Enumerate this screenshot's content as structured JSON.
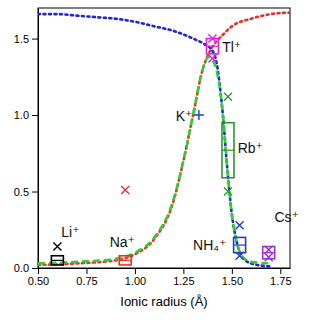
{
  "chart_data": {
    "type": "line",
    "x_label": "Ionic radius (Å)",
    "xlim": [
      0.5,
      1.8
    ],
    "xticks": [
      {
        "value": 0.5,
        "label": "0.50"
      },
      {
        "value": 0.75,
        "label": "0.75"
      },
      {
        "value": 1.0,
        "label": "1.00"
      },
      {
        "value": 1.25,
        "label": "1.25"
      },
      {
        "value": 1.5,
        "label": "1.50"
      },
      {
        "value": 1.75,
        "label": "1.75"
      }
    ],
    "ylim": [
      0,
      1.7
    ],
    "yticks": [
      {
        "value": 0,
        "label": "0.0"
      },
      {
        "value": 0.5,
        "label": "0.5"
      },
      {
        "value": 1.0,
        "label": "1.0"
      },
      {
        "value": 1.5,
        "label": "1.5"
      }
    ],
    "series": [
      {
        "type": "line",
        "color": "#2323d8",
        "line_style": "dotted",
        "x": [
          0.5,
          0.6,
          0.7,
          0.8,
          0.9,
          1.0,
          1.1,
          1.2,
          1.3,
          1.35,
          1.4,
          1.42,
          1.45,
          1.48,
          1.5,
          1.52,
          1.55,
          1.6,
          1.7
        ],
        "values": [
          1.66,
          1.66,
          1.65,
          1.64,
          1.63,
          1.61,
          1.58,
          1.55,
          1.5,
          1.47,
          1.42,
          1.35,
          1.05,
          0.6,
          0.35,
          0.2,
          0.08,
          0.03,
          0.01
        ]
      },
      {
        "type": "line",
        "color": "#e8302a",
        "line_style": "dotted",
        "x": [
          0.5,
          0.7,
          0.9,
          1.0,
          1.1,
          1.2,
          1.25,
          1.3,
          1.35,
          1.38,
          1.42,
          1.45,
          1.5,
          1.6,
          1.7,
          1.8
        ],
        "values": [
          0.02,
          0.03,
          0.05,
          0.09,
          0.19,
          0.44,
          0.7,
          1.0,
          1.3,
          1.4,
          1.48,
          1.52,
          1.58,
          1.63,
          1.66,
          1.67
        ]
      },
      {
        "type": "line",
        "color": "#33cc33",
        "line_style": "dashed",
        "x": [
          0.5,
          0.7,
          0.9,
          1.0,
          1.1,
          1.2,
          1.25,
          1.3,
          1.35,
          1.38,
          1.4,
          1.42,
          1.45,
          1.48,
          1.5,
          1.52,
          1.55,
          1.6,
          1.7
        ],
        "values": [
          0.03,
          0.04,
          0.06,
          0.1,
          0.2,
          0.45,
          0.7,
          1.0,
          1.3,
          1.38,
          1.36,
          1.3,
          1.05,
          0.6,
          0.35,
          0.2,
          0.08,
          0.04,
          0.03
        ]
      },
      {
        "type": "scatter",
        "marker": "square",
        "colors": [
          "#000000",
          "#e8302a",
          "#e020e0",
          "#2a9a2a",
          "#1a3fd1",
          "#9933cc"
        ],
        "x": [
          0.6,
          0.95,
          1.4,
          1.48,
          1.54,
          1.69
        ],
        "values": [
          0.05,
          0.05,
          1.45,
          0.77,
          0.15,
          0.1
        ],
        "errors": [
          0.03,
          0.03,
          0.05,
          0.18,
          0.05,
          0.04
        ]
      },
      {
        "type": "scatter",
        "marker": "x",
        "colors": [
          "#000000",
          "#e8302a",
          "#e020e0",
          "#e020e0",
          "#2a9a2a",
          "#2a9a2a",
          "#1a3fd1",
          "#1a3fd1",
          "#9933cc",
          "#9933cc"
        ],
        "x": [
          0.6,
          0.95,
          1.4,
          1.4,
          1.48,
          1.48,
          1.54,
          1.54,
          1.69,
          1.69
        ],
        "values": [
          0.14,
          0.51,
          1.5,
          1.37,
          1.12,
          0.5,
          0.28,
          0.08,
          0.07,
          0.12
        ]
      },
      {
        "type": "scatter",
        "marker": "plus",
        "color": "#1a3fd1",
        "x": [
          1.33
        ],
        "values": [
          1.0
        ]
      }
    ],
    "annotations": [
      {
        "text": "Li⁺",
        "x": 0.62,
        "y": 0.2
      },
      {
        "text": "Na⁺",
        "x": 0.87,
        "y": 0.14
      },
      {
        "text": "K⁺",
        "x": 1.21,
        "y": 0.96
      },
      {
        "text": "Tl⁺",
        "x": 1.45,
        "y": 1.41
      },
      {
        "text": "Rb⁺",
        "x": 1.53,
        "y": 0.75
      },
      {
        "text": "NH₄⁺",
        "x": 1.3,
        "y": 0.12
      },
      {
        "text": "Cs⁺",
        "x": 1.72,
        "y": 0.3
      }
    ]
  }
}
